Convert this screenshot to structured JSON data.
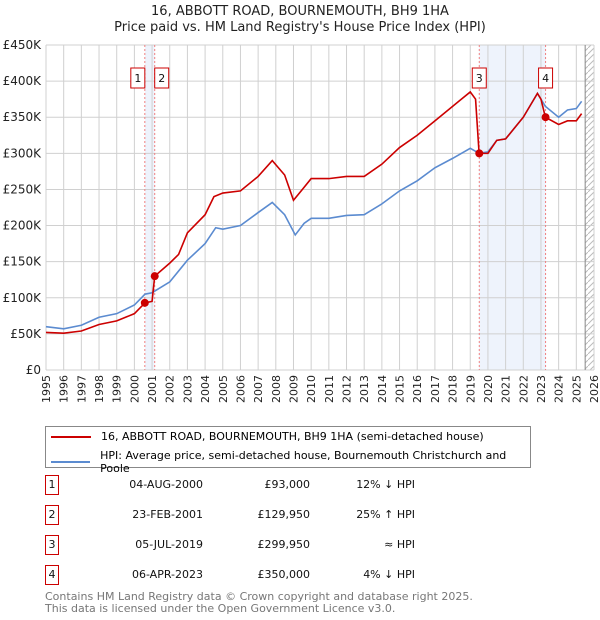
{
  "chart_data": {
    "type": "line",
    "title": "16, ABBOTT ROAD, BOURNEMOUTH, BH9 1HA",
    "subtitle": "Price paid vs. HM Land Registry's House Price Index (HPI)",
    "xlim": [
      1995,
      2026
    ],
    "ylim": [
      0,
      450000
    ],
    "x_ticks": [
      "1995",
      "1996",
      "1997",
      "1998",
      "1999",
      "2000",
      "2001",
      "2002",
      "2003",
      "2004",
      "2005",
      "2006",
      "2007",
      "2008",
      "2009",
      "2010",
      "2011",
      "2012",
      "2013",
      "2014",
      "2015",
      "2016",
      "2017",
      "2018",
      "2019",
      "2020",
      "2021",
      "2022",
      "2023",
      "2024",
      "2025",
      "2026"
    ],
    "y_ticks": [
      {
        "v": 0,
        "label": "£0"
      },
      {
        "v": 50000,
        "label": "£50K"
      },
      {
        "v": 100000,
        "label": "£100K"
      },
      {
        "v": 150000,
        "label": "£150K"
      },
      {
        "v": 200000,
        "label": "£200K"
      },
      {
        "v": 250000,
        "label": "£250K"
      },
      {
        "v": 300000,
        "label": "£300K"
      },
      {
        "v": 350000,
        "label": "£350K"
      },
      {
        "v": 400000,
        "label": "£400K"
      },
      {
        "v": 450000,
        "label": "£450K"
      }
    ],
    "grid": true,
    "series": [
      {
        "name": "16, ABBOTT ROAD, BOURNEMOUTH, BH9 1HA (semi-detached house)",
        "color": "#cc0000",
        "x": [
          1995,
          1996,
          1997,
          1998,
          1999,
          2000,
          2000.6,
          2001.0,
          2001.15,
          2002,
          2002.5,
          2003,
          2004,
          2004.5,
          2005,
          2006,
          2007,
          2007.8,
          2008.5,
          2009.0,
          2009.5,
          2010,
          2011,
          2012,
          2013,
          2014,
          2015,
          2016,
          2017,
          2018,
          2018.5,
          2019.0,
          2019.3,
          2019.5,
          2020,
          2020.5,
          2021,
          2022,
          2022.8,
          2023.0,
          2023.25,
          2024,
          2024.5,
          2025,
          2025.3
        ],
        "y": [
          52000,
          51000,
          54000,
          63000,
          68000,
          78000,
          93000,
          95000,
          129950,
          148000,
          160000,
          190000,
          215000,
          240000,
          245000,
          248000,
          268000,
          290000,
          270000,
          235000,
          250000,
          265000,
          265000,
          268000,
          268000,
          285000,
          308000,
          325000,
          345000,
          365000,
          375000,
          385000,
          375000,
          299950,
          300000,
          318000,
          320000,
          350000,
          383000,
          375000,
          350000,
          340000,
          345000,
          345000,
          355000
        ]
      },
      {
        "name": "HPI: Average price, semi-detached house, Bournemouth Christchurch and Poole",
        "color": "#5b8bd0",
        "x": [
          1995,
          1996,
          1997,
          1998,
          1999,
          2000,
          2000.6,
          2001,
          2002,
          2003,
          2004,
          2004.6,
          2005,
          2006,
          2007,
          2007.8,
          2008.5,
          2009.1,
          2009.6,
          2010,
          2011,
          2012,
          2013,
          2014,
          2015,
          2016,
          2017,
          2018,
          2019,
          2019.5,
          2020,
          2020.5,
          2021,
          2022,
          2022.8,
          2023.25,
          2024,
          2024.5,
          2025,
          2025.3
        ],
        "y": [
          60000,
          57000,
          62000,
          73000,
          78000,
          90000,
          105000,
          107000,
          122000,
          152000,
          175000,
          197000,
          195000,
          200000,
          218000,
          232000,
          215000,
          187000,
          203000,
          210000,
          210000,
          214000,
          215000,
          230000,
          248000,
          262000,
          280000,
          293000,
          307000,
          300000,
          302000,
          318000,
          320000,
          350000,
          383000,
          365000,
          350000,
          360000,
          362000,
          372000
        ]
      }
    ],
    "shaded_ranges": [
      [
        2000.6,
        2001.15
      ],
      [
        2019.5,
        2023.27
      ]
    ],
    "forecast_hatch_from": 2025.5,
    "sales": [
      {
        "n": "1",
        "x": 2000.59,
        "y": 93000,
        "date": "04-AUG-2000",
        "price": "£93,000",
        "hpi": "12% ↓ HPI"
      },
      {
        "n": "2",
        "x": 2001.15,
        "y": 129950,
        "date": "23-FEB-2001",
        "price": "£129,950",
        "hpi": "25% ↑ HPI"
      },
      {
        "n": "3",
        "x": 2019.51,
        "y": 299950,
        "date": "05-JUL-2019",
        "price": "£299,950",
        "hpi": "≈ HPI"
      },
      {
        "n": "4",
        "x": 2023.26,
        "y": 350000,
        "date": "06-APR-2023",
        "price": "£350,000",
        "hpi": "4% ↓ HPI"
      }
    ]
  },
  "footer": {
    "line1": "Contains HM Land Registry data © Crown copyright and database right 2025.",
    "line2": "This data is licensed under the Open Government Licence v3.0."
  }
}
